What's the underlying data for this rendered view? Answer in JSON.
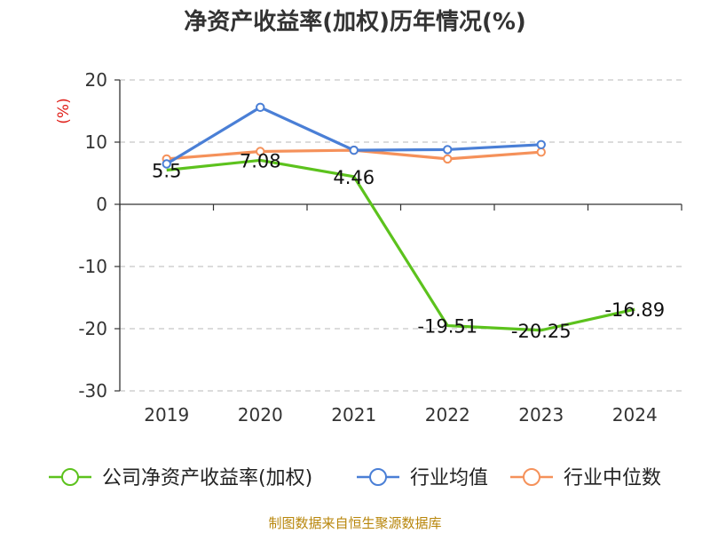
{
  "chart_data": {
    "type": "line",
    "title": "净资产收益率(加权)历年情况(%)",
    "ylabel": "(%)",
    "xlabel": "",
    "categories": [
      "2019",
      "2020",
      "2021",
      "2022",
      "2023",
      "2024"
    ],
    "ylim": [
      -30,
      20
    ],
    "yticks": [
      "20",
      "10",
      "0",
      "-10",
      "-20",
      "-30"
    ],
    "grid": true,
    "legend_position": "bottom",
    "series": [
      {
        "name": "公司净资产收益率(加权)",
        "color": "#5cc21d",
        "values": [
          5.5,
          7.08,
          4.46,
          -19.51,
          -20.25,
          -16.89
        ],
        "labels": [
          "5.5",
          "7.08",
          "4.46",
          "-19.51",
          "-20.25",
          "-16.89"
        ]
      },
      {
        "name": "行业均值",
        "color": "#4a7fd6",
        "values": [
          6.5,
          15.6,
          8.7,
          8.8,
          9.6,
          null
        ]
      },
      {
        "name": "行业中位数",
        "color": "#f5915a",
        "values": [
          7.3,
          8.5,
          8.7,
          7.3,
          8.4,
          null
        ]
      }
    ]
  },
  "footer": {
    "source": "制图数据来自恒生聚源数据库"
  }
}
